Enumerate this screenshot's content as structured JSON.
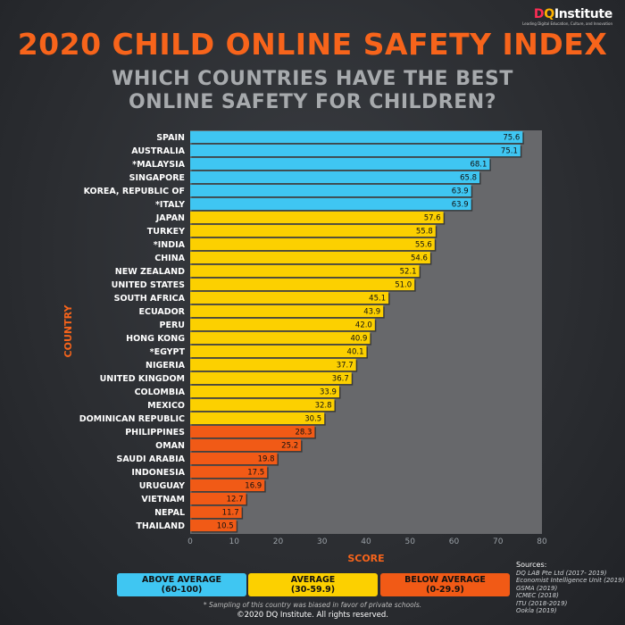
{
  "logo": {
    "brand_d": "D",
    "brand_q": "Q",
    "brand_rest": "Institute",
    "tagline": "Leading Digital Education, Culture, and Innovation"
  },
  "header": {
    "title": "2020 CHILD ONLINE SAFETY INDEX",
    "subtitle_line1": "WHICH COUNTRIES HAVE THE BEST",
    "subtitle_line2": "ONLINE SAFETY FOR CHILDREN?"
  },
  "colors": {
    "above": "#3fc6f2",
    "average": "#fcd000",
    "below": "#f15a16",
    "plot_bg": "#67686b",
    "accent": "#f7641b"
  },
  "chart_data": {
    "type": "bar",
    "orientation": "horizontal",
    "xlabel": "SCORE",
    "ylabel": "COUNTRY",
    "xlim": [
      0,
      80
    ],
    "xticks": [
      0,
      10,
      20,
      30,
      40,
      50,
      60,
      70,
      80
    ],
    "grid": false,
    "categories": [
      "SPAIN",
      "AUSTRALIA",
      "*MALAYSIA",
      "SINGAPORE",
      "KOREA, REPUBLIC OF",
      "*ITALY",
      "JAPAN",
      "TURKEY",
      "*INDIA",
      "CHINA",
      "NEW ZEALAND",
      "UNITED STATES",
      "SOUTH AFRICA",
      "ECUADOR",
      "PERU",
      "HONG KONG",
      "*EGYPT",
      "NIGERIA",
      "UNITED KINGDOM",
      "COLOMBIA",
      "MEXICO",
      "DOMINICAN REPUBLIC",
      "PHILIPPINES",
      "OMAN",
      "SAUDI ARABIA",
      "INDONESIA",
      "URUGUAY",
      "VIETNAM",
      "NEPAL",
      "THAILAND"
    ],
    "values": [
      75.6,
      75.1,
      68.1,
      65.8,
      63.9,
      63.9,
      57.6,
      55.8,
      55.6,
      54.6,
      52.1,
      51.0,
      45.1,
      43.9,
      42.0,
      40.9,
      40.1,
      37.7,
      36.7,
      33.9,
      32.8,
      30.5,
      28.3,
      25.2,
      19.8,
      17.5,
      16.9,
      12.7,
      11.7,
      10.5
    ],
    "value_labels": [
      "75.6",
      "75.1",
      "68.1",
      "65.8",
      "63.9",
      "63.9",
      "57.6",
      "55.8",
      "55.6",
      "54.6",
      "52.1",
      "51.0",
      "45.1",
      "43.9",
      "42.0",
      "40.9",
      "40.1",
      "37.7",
      "36.7",
      "33.9",
      "32.8",
      "30.5",
      "28.3",
      "25.2",
      "19.8",
      "17.5",
      "16.9",
      "12.7",
      "11.7",
      "10.5"
    ],
    "bands": [
      {
        "name": "ABOVE AVERAGE",
        "range": "(60-100)",
        "min": 60,
        "max": 100
      },
      {
        "name": "AVERAGE",
        "range": "(30-59.9)",
        "min": 30,
        "max": 59.9
      },
      {
        "name": "BELOW AVERAGE",
        "range": "(0-29.9)",
        "min": 0,
        "max": 29.9
      }
    ]
  },
  "sources": {
    "title": "Sources:",
    "items": [
      "DQ LAB Pte Ltd (2017- 2019)",
      "Economist Intelligence Unit (2019)",
      "GSMA (2019)",
      "ICMEC (2018)",
      "ITU (2018-2019)",
      "Ookla (2019)"
    ]
  },
  "footnote": "* Sampling of this country was biased in favor of private schools.",
  "copyright": "©2020 DQ Institute. All rights reserved."
}
